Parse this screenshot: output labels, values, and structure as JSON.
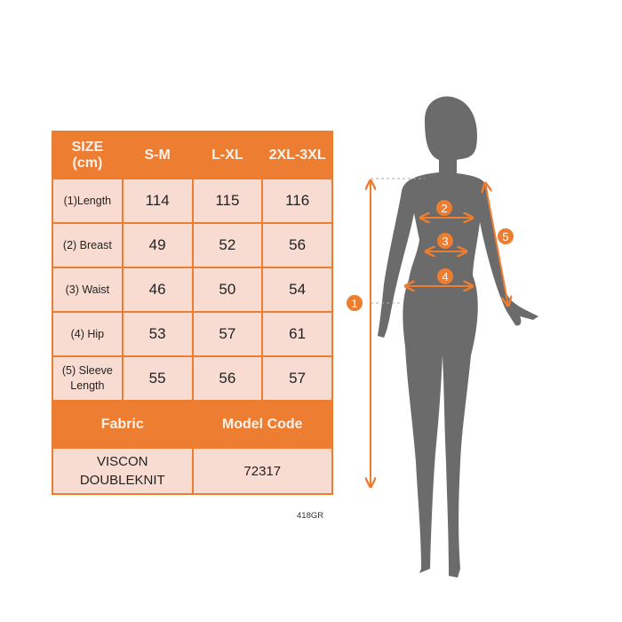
{
  "size_table": {
    "header": [
      "SIZE\n(cm)",
      "S-M",
      "L-XL",
      "2XL-3XL"
    ],
    "header_lines": [
      "SIZE",
      "(cm)"
    ],
    "rows": [
      {
        "label": "(1)Length",
        "values": [
          "114",
          "115",
          "116"
        ]
      },
      {
        "label": "(2) Breast",
        "values": [
          "49",
          "52",
          "56"
        ]
      },
      {
        "label": "(3) Waist",
        "values": [
          "46",
          "50",
          "54"
        ]
      },
      {
        "label": "(4) Hip",
        "values": [
          "53",
          "57",
          "61"
        ]
      },
      {
        "label_lines": [
          "(5) Sleeve",
          "Length"
        ],
        "values": [
          "55",
          "56",
          "57"
        ]
      }
    ],
    "fabric_header": "Fabric",
    "model_code_header": "Model Code",
    "fabric_lines": [
      "VISCON",
      "DOUBLEKNIT"
    ],
    "model_code": "72317"
  },
  "product_code": "418GR",
  "diagram": {
    "markers": [
      "1",
      "2",
      "3",
      "4",
      "5"
    ],
    "accent_color": "#ed7d31",
    "silhouette_color": "#6b6b6b"
  }
}
